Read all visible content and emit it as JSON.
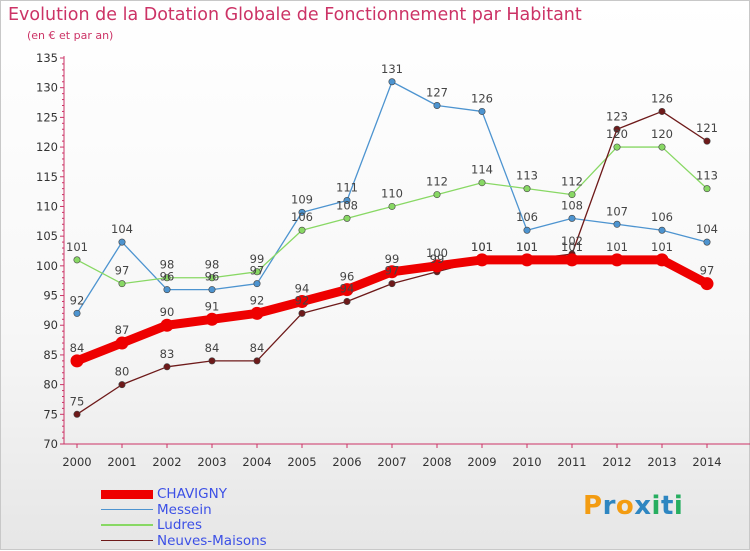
{
  "header": {
    "title": "Evolution de la Dotation Globale de Fonctionnement par Habitant",
    "subtitle": "(en € et par an)"
  },
  "logo": {
    "letters": [
      "P",
      "r",
      "o",
      "x",
      "i",
      "t",
      "i"
    ],
    "colors": [
      "#f39c12",
      "#2e86c1",
      "#f39c12",
      "#2e86c1",
      "#27ae60",
      "#2e86c1",
      "#27ae60"
    ]
  },
  "chart_data": {
    "type": "line",
    "title": "Evolution de la Dotation Globale de Fonctionnement par Habitant",
    "subtitle": "(en € et par an)",
    "xlabel": "",
    "ylabel": "",
    "categories": [
      "2000",
      "2001",
      "2002",
      "2003",
      "2004",
      "2005",
      "2006",
      "2007",
      "2008",
      "2009",
      "2010",
      "2011",
      "2012",
      "2013",
      "2014"
    ],
    "ylim": [
      70,
      135
    ],
    "yticks": [
      70,
      75,
      80,
      85,
      90,
      95,
      100,
      105,
      110,
      115,
      120,
      125,
      130,
      135
    ],
    "grid": false,
    "legend_position": "bottom-left",
    "series": [
      {
        "name": "CHAVIGNY",
        "color": "#ee0000",
        "values": [
          84,
          87,
          90,
          91,
          92,
          94,
          96,
          99,
          100,
          101,
          101,
          101,
          101,
          101,
          97
        ]
      },
      {
        "name": "Messein",
        "color": "#4d94d0",
        "values": [
          92,
          104,
          96,
          96,
          97,
          109,
          111,
          131,
          127,
          126,
          106,
          108,
          107,
          106,
          104
        ]
      },
      {
        "name": "Ludres",
        "color": "#88d864",
        "values": [
          101,
          97,
          98,
          98,
          99,
          106,
          108,
          110,
          112,
          114,
          113,
          112,
          120,
          120,
          113
        ]
      },
      {
        "name": "Neuves-Maisons",
        "color": "#6e1a1a",
        "values": [
          75,
          80,
          83,
          84,
          84,
          92,
          94,
          97,
          99,
          101,
          101,
          102,
          123,
          126,
          121
        ]
      }
    ]
  }
}
